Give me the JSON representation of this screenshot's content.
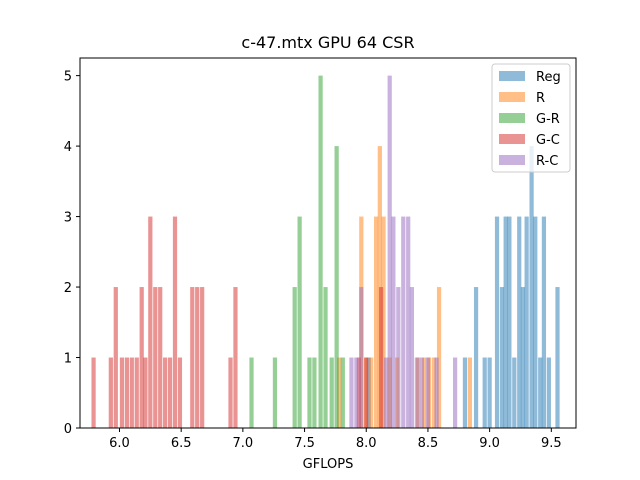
{
  "chart_data": {
    "type": "histogram",
    "title": "c-47.mtx GPU 64 CSR",
    "xlabel": "GFLOPS",
    "ylabel": "",
    "xlim": [
      5.68,
      9.7
    ],
    "ylim": [
      0,
      5.25
    ],
    "bin_width": 0.0341,
    "xticks": [
      6.0,
      6.5,
      7.0,
      7.5,
      8.0,
      8.5,
      9.0,
      9.5
    ],
    "xtick_labels": [
      "6.0",
      "6.5",
      "7.0",
      "7.5",
      "8.0",
      "8.5",
      "9.0",
      "9.5"
    ],
    "yticks": [
      0,
      1,
      2,
      3,
      4,
      5
    ],
    "ytick_labels": [
      "0",
      "1",
      "2",
      "3",
      "4",
      "5"
    ],
    "legend_position": "top-right",
    "series": [
      {
        "name": "Reg",
        "color": "#1f77b4",
        "bins": [
          {
            "x": 8.02,
            "count": 1
          },
          {
            "x": 8.8,
            "count": 1
          },
          {
            "x": 8.89,
            "count": 2
          },
          {
            "x": 8.96,
            "count": 1
          },
          {
            "x": 9.0,
            "count": 1
          },
          {
            "x": 9.06,
            "count": 3
          },
          {
            "x": 9.1,
            "count": 2
          },
          {
            "x": 9.13,
            "count": 3
          },
          {
            "x": 9.16,
            "count": 3
          },
          {
            "x": 9.2,
            "count": 1
          },
          {
            "x": 9.24,
            "count": 3
          },
          {
            "x": 9.27,
            "count": 2
          },
          {
            "x": 9.3,
            "count": 3
          },
          {
            "x": 9.34,
            "count": 4
          },
          {
            "x": 9.37,
            "count": 3
          },
          {
            "x": 9.41,
            "count": 1
          },
          {
            "x": 9.44,
            "count": 3
          },
          {
            "x": 9.48,
            "count": 1
          },
          {
            "x": 9.55,
            "count": 2
          }
        ]
      },
      {
        "name": "R",
        "color": "#ff7f0e",
        "bins": [
          {
            "x": 7.78,
            "count": 1
          },
          {
            "x": 7.96,
            "count": 3
          },
          {
            "x": 8.0,
            "count": 1
          },
          {
            "x": 8.04,
            "count": 1
          },
          {
            "x": 8.08,
            "count": 3
          },
          {
            "x": 8.11,
            "count": 4
          },
          {
            "x": 8.14,
            "count": 3
          },
          {
            "x": 8.19,
            "count": 1
          },
          {
            "x": 8.25,
            "count": 1
          },
          {
            "x": 8.42,
            "count": 1
          },
          {
            "x": 8.47,
            "count": 1
          },
          {
            "x": 8.51,
            "count": 1
          },
          {
            "x": 8.55,
            "count": 1
          },
          {
            "x": 8.59,
            "count": 2
          },
          {
            "x": 8.84,
            "count": 1
          }
        ]
      },
      {
        "name": "G-R",
        "color": "#2ca02c",
        "bins": [
          {
            "x": 7.07,
            "count": 1
          },
          {
            "x": 7.26,
            "count": 1
          },
          {
            "x": 7.42,
            "count": 2
          },
          {
            "x": 7.46,
            "count": 3
          },
          {
            "x": 7.54,
            "count": 1
          },
          {
            "x": 7.58,
            "count": 1
          },
          {
            "x": 7.63,
            "count": 5
          },
          {
            "x": 7.67,
            "count": 2
          },
          {
            "x": 7.72,
            "count": 1
          },
          {
            "x": 7.76,
            "count": 4
          },
          {
            "x": 7.81,
            "count": 1
          }
        ]
      },
      {
        "name": "G-C",
        "color": "#d62728",
        "bins": [
          {
            "x": 5.79,
            "count": 1
          },
          {
            "x": 5.93,
            "count": 1
          },
          {
            "x": 5.97,
            "count": 2
          },
          {
            "x": 6.02,
            "count": 1
          },
          {
            "x": 6.06,
            "count": 1
          },
          {
            "x": 6.1,
            "count": 1
          },
          {
            "x": 6.14,
            "count": 1
          },
          {
            "x": 6.18,
            "count": 2
          },
          {
            "x": 6.21,
            "count": 1
          },
          {
            "x": 6.25,
            "count": 3
          },
          {
            "x": 6.29,
            "count": 2
          },
          {
            "x": 6.33,
            "count": 2
          },
          {
            "x": 6.37,
            "count": 1
          },
          {
            "x": 6.41,
            "count": 1
          },
          {
            "x": 6.45,
            "count": 3
          },
          {
            "x": 6.49,
            "count": 1
          },
          {
            "x": 6.59,
            "count": 2
          },
          {
            "x": 6.63,
            "count": 2
          },
          {
            "x": 6.67,
            "count": 2
          },
          {
            "x": 6.9,
            "count": 1
          },
          {
            "x": 6.94,
            "count": 2
          },
          {
            "x": 7.94,
            "count": 1
          },
          {
            "x": 8.0,
            "count": 1
          },
          {
            "x": 8.12,
            "count": 2
          }
        ]
      },
      {
        "name": "R-C",
        "color": "#9467bd",
        "bins": [
          {
            "x": 7.88,
            "count": 1
          },
          {
            "x": 7.92,
            "count": 1
          },
          {
            "x": 7.96,
            "count": 2
          },
          {
            "x": 8.16,
            "count": 1
          },
          {
            "x": 8.19,
            "count": 5
          },
          {
            "x": 8.22,
            "count": 3
          },
          {
            "x": 8.26,
            "count": 2
          },
          {
            "x": 8.3,
            "count": 3
          },
          {
            "x": 8.34,
            "count": 3
          },
          {
            "x": 8.37,
            "count": 2
          },
          {
            "x": 8.41,
            "count": 1
          },
          {
            "x": 8.45,
            "count": 1
          },
          {
            "x": 8.5,
            "count": 1
          },
          {
            "x": 8.57,
            "count": 1
          },
          {
            "x": 8.72,
            "count": 1
          }
        ]
      }
    ]
  }
}
